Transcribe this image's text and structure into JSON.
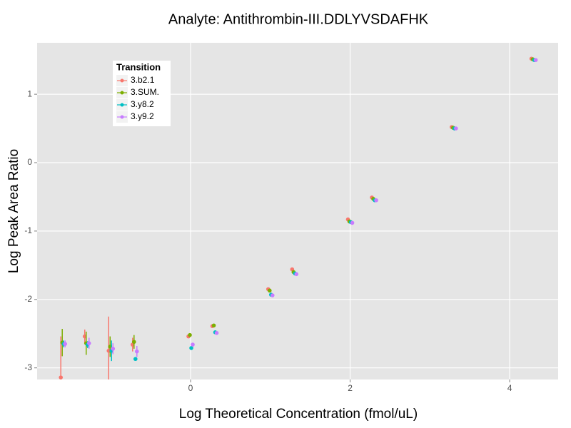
{
  "chart_data": {
    "type": "scatter",
    "title": "Analyte: Antithrombin-III.DDLYVSDAFHK",
    "x_label": "Log Theoretical Concentration (fmol/uL)",
    "y_label": "Log Peak Area Ratio",
    "legend_title": "Transition",
    "legend_position": "top-left",
    "grid": true,
    "xlim": [
      -1.924,
      4.608
    ],
    "ylim": [
      -3.17,
      1.752
    ],
    "xticks": [
      0,
      2,
      4
    ],
    "yticks": [
      -3,
      -2,
      -1,
      0,
      1
    ],
    "x": [
      -1.6,
      -1.3,
      -1.0,
      -0.7,
      0,
      0.3,
      1,
      1.3,
      2,
      2.3,
      3.3,
      4.3
    ],
    "series": [
      {
        "name": "3.b2.1",
        "color": "#F8766D",
        "values": [
          -3.14,
          -2.54,
          -2.75,
          -2.66,
          -2.54,
          -2.39,
          -1.85,
          -1.56,
          -0.83,
          -0.51,
          0.52,
          1.52
        ],
        "errors": [
          0.6,
          0.1,
          0.5,
          0.1,
          null,
          null,
          null,
          null,
          null,
          null,
          null,
          null
        ]
      },
      {
        "name": "3.SUM.",
        "color": "#7CAE00",
        "values": [
          -2.63,
          -2.64,
          -2.69,
          -2.62,
          -2.52,
          -2.38,
          -1.87,
          -1.6,
          -0.86,
          -0.53,
          0.51,
          1.51
        ],
        "errors": [
          0.2,
          0.17,
          0.15,
          0.1,
          null,
          null,
          null,
          null,
          null,
          null,
          null,
          null
        ]
      },
      {
        "name": "3.y8.2",
        "color": "#00BFC4",
        "values": [
          -2.65,
          -2.66,
          -2.75,
          -2.87,
          -2.71,
          -2.48,
          -1.93,
          -1.62,
          -0.87,
          -0.55,
          0.5,
          1.5
        ],
        "errors": [
          0.05,
          0.05,
          0.15,
          null,
          null,
          null,
          null,
          null,
          null,
          null,
          null,
          null
        ]
      },
      {
        "name": "3.y9.2",
        "color": "#C77CFF",
        "values": [
          -2.65,
          -2.64,
          -2.72,
          -2.76,
          -2.66,
          -2.49,
          -1.94,
          -1.63,
          -0.88,
          -0.55,
          0.5,
          1.5
        ],
        "errors": [
          0.05,
          0.08,
          0.08,
          0.08,
          null,
          null,
          null,
          null,
          null,
          null,
          null,
          null
        ]
      }
    ]
  }
}
